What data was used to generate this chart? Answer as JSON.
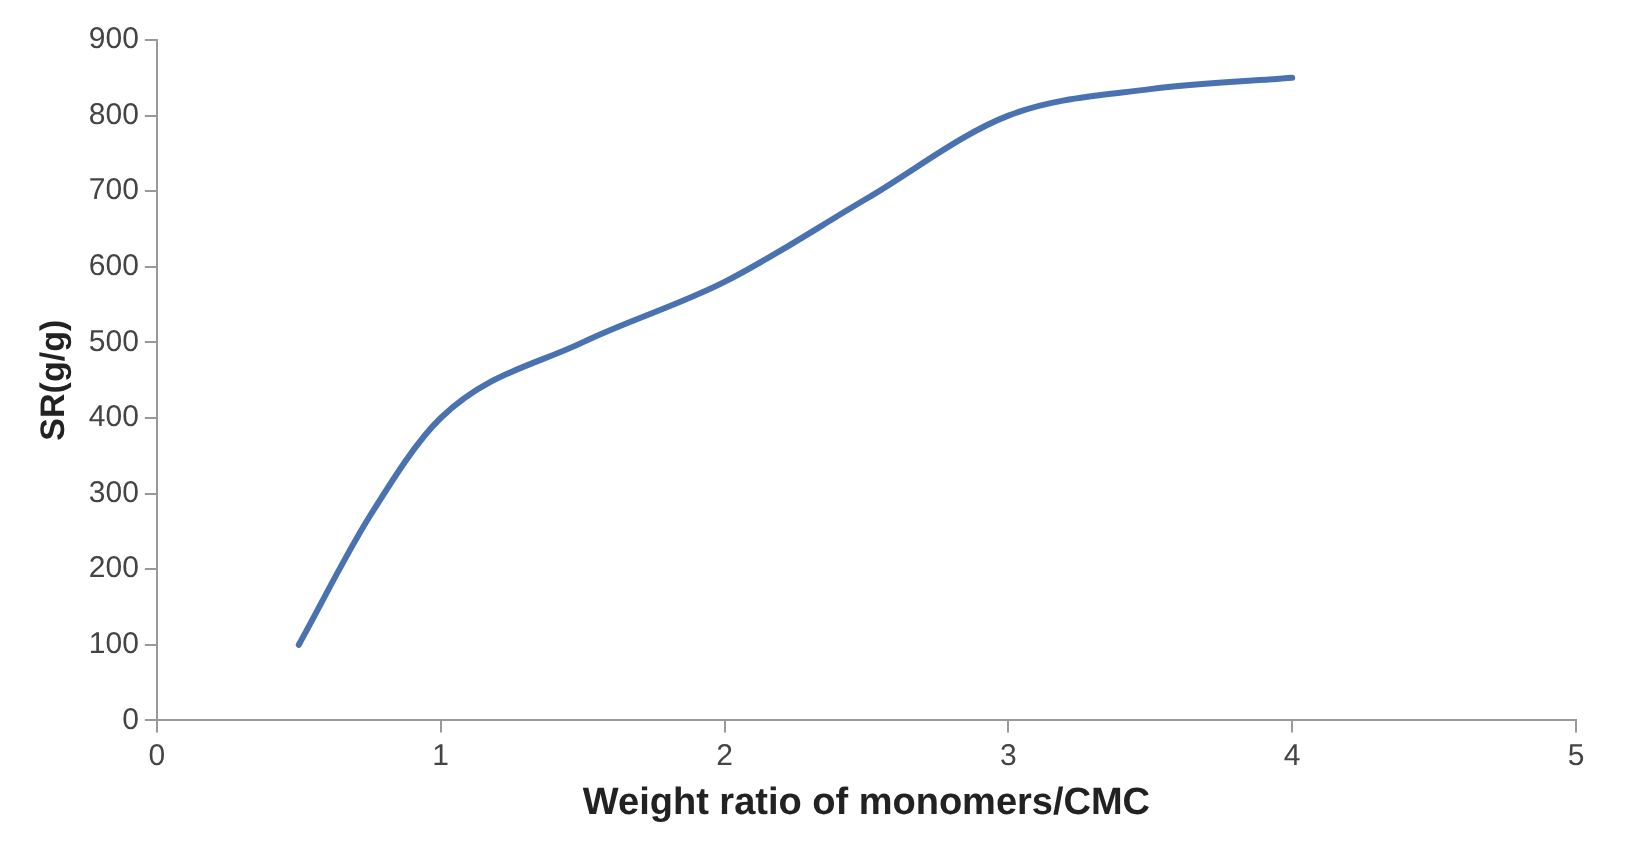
{
  "chart_data": {
    "type": "line",
    "xlabel": "Weight ratio of monomers/CMC",
    "ylabel": "SR(g/g)",
    "x": [
      0.5,
      0.75,
      1,
      1.5,
      2,
      2.5,
      3,
      3.5,
      4
    ],
    "series": [
      {
        "color": "#4a72b0",
        "values": [
          100,
          270,
          400,
          500,
          580,
          690,
          800,
          835,
          850
        ]
      }
    ],
    "xlim": [
      0,
      5
    ],
    "xticks": [
      0,
      1,
      2,
      3,
      4,
      5
    ],
    "ylim": [
      0,
      900
    ],
    "yticks": [
      0,
      100,
      200,
      300,
      400,
      500,
      600,
      700,
      800,
      900
    ],
    "grid": false,
    "legend": false,
    "marker": "none",
    "line_style": "solid"
  }
}
